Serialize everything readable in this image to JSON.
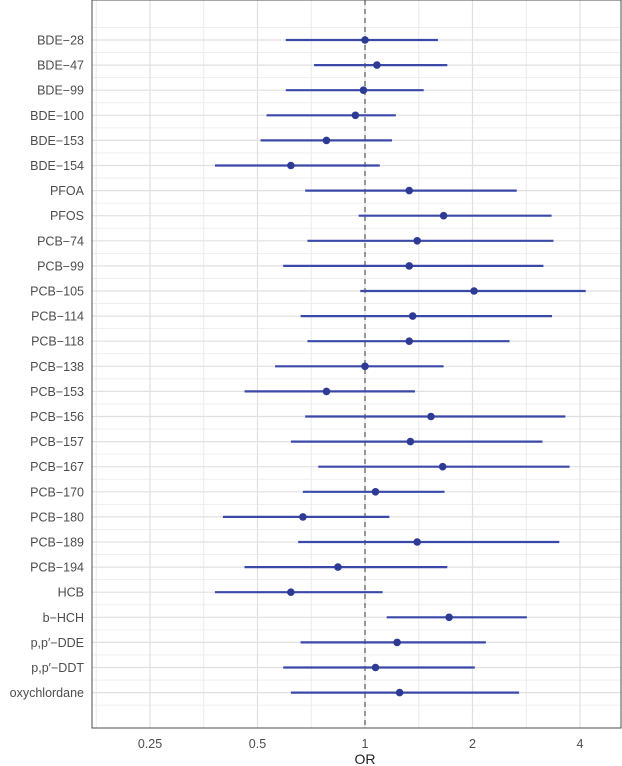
{
  "chart_data": {
    "type": "forest",
    "xlabel": "OR",
    "x_scale": "log",
    "xlim": [
      0.2,
      5.0
    ],
    "x_ticks": [
      0.25,
      0.5,
      1,
      2,
      4
    ],
    "x_tick_labels": [
      "0.25",
      "0.5",
      "1",
      "2",
      "4"
    ],
    "reference_line": 1,
    "grid": true,
    "colors": {
      "point": "#2e3b94",
      "ci": "#3a49a8",
      "reference": "#7f7f7f",
      "grid": "#ebebeb",
      "panel_border": "#4d4d4d"
    },
    "rows": [
      {
        "label": "BDE−28",
        "or": 1.0,
        "low": 0.6,
        "high": 1.6
      },
      {
        "label": "BDE−47",
        "or": 1.08,
        "low": 0.72,
        "high": 1.7
      },
      {
        "label": "BDE−99",
        "or": 0.99,
        "low": 0.6,
        "high": 1.46
      },
      {
        "label": "BDE−100",
        "or": 0.94,
        "low": 0.53,
        "high": 1.22
      },
      {
        "label": "BDE−153",
        "or": 0.78,
        "low": 0.51,
        "high": 1.19
      },
      {
        "label": "BDE−154",
        "or": 0.62,
        "low": 0.38,
        "high": 1.1
      },
      {
        "label": "PFOA",
        "or": 1.33,
        "low": 0.68,
        "high": 2.66
      },
      {
        "label": "PFOS",
        "or": 1.66,
        "low": 0.96,
        "high": 3.33
      },
      {
        "label": "PCB−74",
        "or": 1.4,
        "low": 0.69,
        "high": 3.37
      },
      {
        "label": "PCB−99",
        "or": 1.33,
        "low": 0.59,
        "high": 3.16
      },
      {
        "label": "PCB−105",
        "or": 2.02,
        "low": 0.97,
        "high": 4.15
      },
      {
        "label": "PCB−114",
        "or": 1.36,
        "low": 0.66,
        "high": 3.34
      },
      {
        "label": "PCB−118",
        "or": 1.33,
        "low": 0.69,
        "high": 2.54
      },
      {
        "label": "PCB−138",
        "or": 1.0,
        "low": 0.56,
        "high": 1.66
      },
      {
        "label": "PCB−153",
        "or": 0.78,
        "low": 0.46,
        "high": 1.38
      },
      {
        "label": "PCB−156",
        "or": 1.53,
        "low": 0.68,
        "high": 3.64
      },
      {
        "label": "PCB−157",
        "or": 1.34,
        "low": 0.62,
        "high": 3.14
      },
      {
        "label": "PCB−167",
        "or": 1.65,
        "low": 0.74,
        "high": 3.74
      },
      {
        "label": "PCB−170",
        "or": 1.07,
        "low": 0.67,
        "high": 1.67
      },
      {
        "label": "PCB−180",
        "or": 0.67,
        "low": 0.4,
        "high": 1.17
      },
      {
        "label": "PCB−189",
        "or": 1.4,
        "low": 0.65,
        "high": 3.5
      },
      {
        "label": "PCB−194",
        "or": 0.84,
        "low": 0.46,
        "high": 1.7
      },
      {
        "label": "HCB",
        "or": 0.62,
        "low": 0.38,
        "high": 1.12
      },
      {
        "label": "b−HCH",
        "or": 1.72,
        "low": 1.15,
        "high": 2.84
      },
      {
        "label": "p,p′−DDE",
        "or": 1.23,
        "low": 0.66,
        "high": 2.18
      },
      {
        "label": "p,p′−DDT",
        "or": 1.07,
        "low": 0.59,
        "high": 2.03
      },
      {
        "label": "oxychlordane",
        "or": 1.25,
        "low": 0.62,
        "high": 2.7
      }
    ]
  }
}
